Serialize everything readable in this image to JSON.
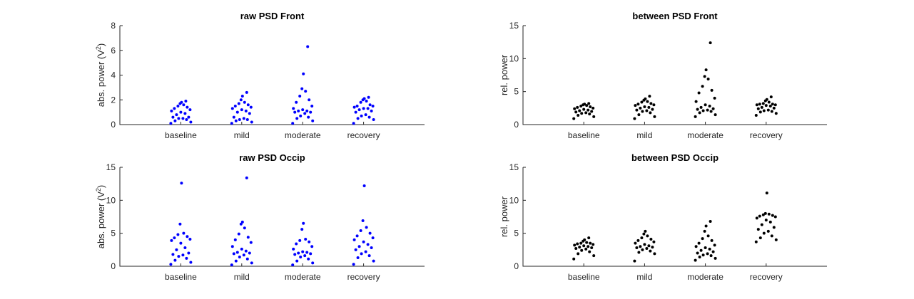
{
  "chart_data": [
    {
      "type": "scatter",
      "title": "raw PSD Front",
      "ylabel": "abs. power (V",
      "ylabel_sup": "2",
      "ylabel_close": ")",
      "ylim": [
        0,
        8
      ],
      "yticks": [
        "0",
        "2",
        "4",
        "6",
        "8"
      ],
      "categories": [
        "baseline",
        "mild",
        "moderate",
        "recovery"
      ],
      "color": "#0000ff",
      "series": [
        {
          "values": [
            0.1,
            0.2,
            0.3,
            0.4,
            0.5,
            0.5,
            0.6,
            0.6,
            0.8,
            0.9,
            1.0,
            1.1,
            1.2,
            1.3,
            1.4,
            1.5,
            1.6,
            1.7,
            1.8,
            1.9
          ]
        },
        {
          "values": [
            0.1,
            0.2,
            0.3,
            0.4,
            0.4,
            0.5,
            0.6,
            0.9,
            1.0,
            1.1,
            1.2,
            1.3,
            1.4,
            1.5,
            1.6,
            1.7,
            1.8,
            2.0,
            2.3,
            2.6
          ]
        },
        {
          "values": [
            0.1,
            0.3,
            0.5,
            0.6,
            0.7,
            0.9,
            1.0,
            1.0,
            1.1,
            1.1,
            1.2,
            1.3,
            1.5,
            1.8,
            2.0,
            2.3,
            2.7,
            2.9,
            4.1,
            6.3
          ]
        },
        {
          "values": [
            0.1,
            0.4,
            0.5,
            0.6,
            0.7,
            0.8,
            1.0,
            1.1,
            1.2,
            1.3,
            1.3,
            1.4,
            1.5,
            1.5,
            1.6,
            1.8,
            1.9,
            2.0,
            2.1,
            2.2
          ]
        }
      ]
    },
    {
      "type": "scatter",
      "title": "between PSD Front",
      "ylabel": "rel. power",
      "ylim": [
        0,
        15
      ],
      "yticks": [
        "0",
        "5",
        "10",
        "15"
      ],
      "categories": [
        "baseline",
        "mild",
        "moderate",
        "recovery"
      ],
      "color": "#000000",
      "series": [
        {
          "values": [
            0.9,
            1.2,
            1.4,
            1.6,
            1.7,
            1.8,
            1.9,
            2.0,
            2.1,
            2.2,
            2.3,
            2.4,
            2.5,
            2.6,
            2.7,
            2.8,
            2.9,
            3.0,
            3.1,
            3.2
          ]
        },
        {
          "values": [
            0.9,
            1.2,
            1.5,
            1.8,
            2.0,
            2.1,
            2.2,
            2.3,
            2.5,
            2.6,
            2.7,
            2.9,
            3.0,
            3.1,
            3.2,
            3.4,
            3.5,
            3.7,
            3.9,
            4.3
          ]
        },
        {
          "values": [
            1.2,
            1.5,
            1.8,
            2.0,
            2.1,
            2.2,
            2.3,
            2.4,
            2.6,
            2.8,
            3.0,
            3.5,
            4.0,
            4.8,
            5.2,
            5.8,
            6.9,
            7.3,
            8.3,
            12.4
          ]
        },
        {
          "values": [
            1.4,
            1.7,
            1.9,
            2.0,
            2.1,
            2.2,
            2.4,
            2.5,
            2.6,
            2.8,
            2.9,
            3.0,
            3.0,
            3.1,
            3.1,
            3.2,
            3.4,
            3.6,
            3.8,
            4.2
          ]
        }
      ]
    },
    {
      "type": "scatter",
      "title": "raw PSD Occip",
      "ylabel": "abs. power (V",
      "ylabel_sup": "2",
      "ylabel_close": ")",
      "ylim": [
        0,
        15
      ],
      "yticks": [
        "0",
        "5",
        "10",
        "15"
      ],
      "categories": [
        "baseline",
        "mild",
        "moderate",
        "recovery"
      ],
      "color": "#0000ff",
      "series": [
        {
          "values": [
            0.3,
            0.6,
            0.9,
            1.2,
            1.5,
            1.7,
            1.8,
            2.0,
            2.5,
            2.8,
            3.5,
            3.9,
            4.1,
            4.3,
            4.5,
            4.8,
            5.0,
            6.4,
            12.6
          ]
        },
        {
          "values": [
            0.2,
            0.5,
            0.8,
            1.1,
            1.4,
            1.7,
            1.9,
            2.0,
            2.1,
            2.3,
            2.6,
            3.0,
            3.6,
            4.0,
            4.4,
            4.9,
            5.8,
            6.4,
            6.7,
            13.4
          ]
        },
        {
          "values": [
            0.2,
            0.5,
            0.8,
            1.1,
            1.4,
            1.6,
            1.8,
            1.9,
            2.0,
            2.1,
            2.2,
            2.6,
            3.0,
            3.4,
            3.7,
            3.9,
            4.1,
            5.6,
            6.5
          ]
        },
        {
          "values": [
            0.3,
            0.8,
            1.3,
            1.6,
            1.9,
            2.2,
            2.5,
            2.8,
            3.0,
            3.3,
            3.7,
            4.0,
            4.3,
            4.6,
            5.0,
            5.4,
            5.9,
            6.9,
            12.2
          ]
        }
      ]
    },
    {
      "type": "scatter",
      "title": "between PSD Occip",
      "ylabel": "rel. power",
      "ylim": [
        0,
        15
      ],
      "yticks": [
        "0",
        "5",
        "10",
        "15"
      ],
      "categories": [
        "baseline",
        "mild",
        "moderate",
        "recovery"
      ],
      "color": "#000000",
      "series": [
        {
          "values": [
            1.1,
            1.6,
            1.9,
            2.2,
            2.4,
            2.6,
            2.7,
            2.8,
            2.9,
            3.0,
            3.1,
            3.2,
            3.3,
            3.4,
            3.5,
            3.5,
            3.6,
            3.8,
            4.0,
            4.3
          ]
        },
        {
          "values": [
            0.8,
            1.9,
            2.1,
            2.3,
            2.5,
            2.7,
            2.8,
            2.9,
            3.0,
            3.1,
            3.3,
            3.5,
            3.7,
            3.9,
            4.1,
            4.3,
            4.6,
            4.9,
            5.3
          ]
        },
        {
          "values": [
            0.9,
            1.2,
            1.4,
            1.6,
            1.7,
            1.9,
            2.0,
            2.2,
            2.4,
            2.6,
            2.8,
            3.0,
            3.2,
            3.5,
            3.9,
            4.2,
            4.6,
            5.3,
            6.1,
            6.8
          ]
        },
        {
          "values": [
            3.7,
            4.0,
            4.3,
            4.6,
            5.0,
            5.3,
            5.6,
            5.9,
            6.3,
            6.7,
            7.0,
            7.3,
            7.5,
            7.6,
            7.7,
            7.8,
            7.9,
            8.0,
            11.1
          ]
        }
      ]
    }
  ]
}
